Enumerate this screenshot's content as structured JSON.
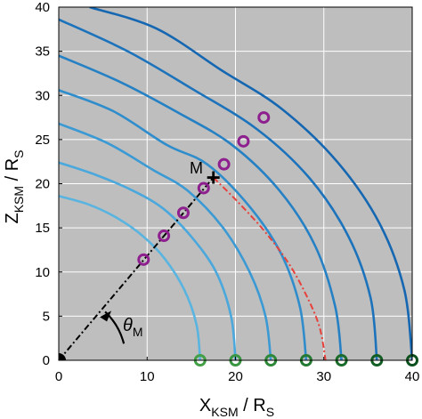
{
  "chart_data": {
    "type": "line",
    "xlim": [
      0,
      40
    ],
    "ylim": [
      0,
      40
    ],
    "x_ticks": [
      0,
      10,
      20,
      30,
      40
    ],
    "y_ticks": [
      0,
      5,
      10,
      15,
      20,
      25,
      30,
      35,
      40
    ],
    "grid": true,
    "background": "#bebebe",
    "xlabel": {
      "main": "X",
      "sub": "KSM",
      "rest": " / R",
      "unit_sub": "S"
    },
    "ylabel": {
      "main": "Z",
      "sub": "KSM",
      "rest": " / R",
      "unit_sub": "S"
    },
    "angle_label": {
      "main": "θ",
      "sub": "M"
    },
    "point_label": "M",
    "field_lines": [
      {
        "nose_x": 16.0,
        "color": "#5ab4e0",
        "points": [
          [
            16.0,
            0
          ],
          [
            15.6,
            4
          ],
          [
            14.2,
            8
          ],
          [
            12.0,
            11.5
          ],
          [
            9.6,
            14
          ],
          [
            6.8,
            16
          ],
          [
            3.5,
            17.6
          ],
          [
            0,
            18.6
          ]
        ]
      },
      {
        "nose_x": 20.0,
        "color": "#4aa8dc",
        "points": [
          [
            20.0,
            0
          ],
          [
            19.5,
            5
          ],
          [
            17.8,
            10
          ],
          [
            15.0,
            14
          ],
          [
            11.8,
            17.2
          ],
          [
            8.2,
            19.3
          ],
          [
            4.2,
            21.0
          ],
          [
            0,
            22.4
          ]
        ]
      },
      {
        "nose_x": 24.0,
        "color": "#3b9ad4",
        "points": [
          [
            24.0,
            0
          ],
          [
            23.4,
            5
          ],
          [
            21.6,
            10
          ],
          [
            18.6,
            15
          ],
          [
            14.6,
            19.2
          ],
          [
            10.6,
            21.6
          ],
          [
            5.5,
            24.6
          ],
          [
            0,
            26.8
          ]
        ]
      },
      {
        "nose_x": 28.0,
        "color": "#2f8dcc",
        "points": [
          [
            28.0,
            0
          ],
          [
            27.3,
            6
          ],
          [
            25.2,
            12
          ],
          [
            21.6,
            17.4
          ],
          [
            16.8,
            22.2
          ],
          [
            12.2,
            24.4
          ],
          [
            6.2,
            28.2
          ],
          [
            0,
            30.6
          ]
        ]
      },
      {
        "nose_x": 32.0,
        "color": "#2580c4",
        "points": [
          [
            32.0,
            0
          ],
          [
            31.3,
            6
          ],
          [
            29.0,
            13
          ],
          [
            25.0,
            19.2
          ],
          [
            19.6,
            24.4
          ],
          [
            13.6,
            28.0
          ],
          [
            7.0,
            31.5
          ],
          [
            0,
            34.5
          ]
        ]
      },
      {
        "nose_x": 36.0,
        "color": "#1c73bb",
        "points": [
          [
            36.0,
            0
          ],
          [
            35.3,
            7
          ],
          [
            32.8,
            14
          ],
          [
            28.4,
            20.6
          ],
          [
            22.4,
            26.2
          ],
          [
            15.0,
            30.8
          ],
          [
            7.8,
            35.0
          ],
          [
            0,
            38.6
          ]
        ]
      },
      {
        "nose_x": 40.0,
        "color": "#1567b2",
        "points": [
          [
            40.0,
            0
          ],
          [
            39.1,
            8
          ],
          [
            36.3,
            15.5
          ],
          [
            31.5,
            22.5
          ],
          [
            25.2,
            28.5
          ],
          [
            18.5,
            32.8
          ],
          [
            11.0,
            37.6
          ],
          [
            3.5,
            40.0
          ]
        ]
      }
    ],
    "dashed_projection": {
      "color": "#e8413b",
      "points": [
        [
          17.5,
          20.7
        ],
        [
          20.2,
          18.0
        ],
        [
          23.3,
          14.6
        ],
        [
          26.0,
          11.0
        ],
        [
          28.0,
          7.4
        ],
        [
          29.5,
          3.8
        ],
        [
          30.2,
          0
        ]
      ]
    },
    "radial_line": {
      "color": "#000000",
      "from": [
        0,
        0
      ],
      "to": [
        17.5,
        20.7
      ]
    },
    "crossing_markers": {
      "color": "#8e1f8e",
      "points": [
        [
          9.6,
          11.4
        ],
        [
          11.9,
          14.1
        ],
        [
          14.1,
          16.7
        ],
        [
          16.4,
          19.5
        ],
        [
          18.7,
          22.2
        ],
        [
          20.9,
          24.8
        ],
        [
          23.2,
          27.5
        ]
      ]
    },
    "equator_markers": {
      "points": [
        {
          "x": 16.0,
          "color": "#43a047"
        },
        {
          "x": 20.0,
          "color": "#3a9642"
        },
        {
          "x": 24.0,
          "color": "#2e883a"
        },
        {
          "x": 28.0,
          "color": "#247a32"
        },
        {
          "x": 32.0,
          "color": "#1b6c2b"
        },
        {
          "x": 36.0,
          "color": "#135e24"
        },
        {
          "x": 40.0,
          "color": "#0c501d"
        }
      ]
    },
    "point_m": [
      17.5,
      20.7
    ]
  }
}
